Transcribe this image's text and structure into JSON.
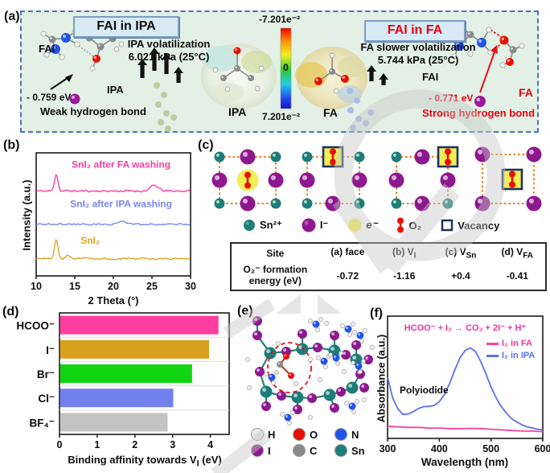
{
  "panel_a": {
    "label": "(a)",
    "header_ipa": "FAI in IPA",
    "header_fa": "FAI in FA",
    "fai_left": "FAI",
    "ipa_small": "IPA",
    "weak_energy": "- 0.759 eV",
    "weak_bond": "Weak hydrogen bond",
    "ipa_vol_1": "IPA volatilization",
    "ipa_vol_2": "6.021 kPa (25°C)",
    "esp_ipa": "IPA",
    "esp_fa": "FA",
    "cb_top": "-7.201e⁻²",
    "cb_mid": "0",
    "cb_bottom": "7.201e⁻²",
    "fa_vol_1": "FA slower volatilization",
    "fa_vol_2": "5.744 kPa (25°C)",
    "fai_right": "FAI",
    "strong_energy": "- 0.771 eV",
    "strong_bond": "Strong hydrogen bond",
    "fa_right": "FA"
  },
  "panel_b": {
    "label": "(b)"
  },
  "panel_c": {
    "label": "(c)",
    "legend": [
      {
        "name": "Sn²⁺"
      },
      {
        "name": "I⁻"
      },
      {
        "name": "e⁻"
      },
      {
        "name": "O₂"
      },
      {
        "name": "Vacancy"
      }
    ],
    "table": {
      "site_header": "Site",
      "cols": [
        {
          "pre": "(a) face",
          "sub": ""
        },
        {
          "pre": "(b) V",
          "sub": "I"
        },
        {
          "pre": "(c) V",
          "sub": "Sn"
        },
        {
          "pre": "(d) V",
          "sub": "FA"
        }
      ],
      "row_label": "O₂⁻ formation energy (eV)",
      "values": [
        "-0.72",
        "-1.16",
        "+0.4",
        "-0.41"
      ]
    }
  },
  "panel_d": {
    "label": "(d)"
  },
  "panel_e": {
    "label": "(e)",
    "legend": [
      "H",
      "O",
      "N",
      "I",
      "C",
      "Sn"
    ],
    "legend_colors": [
      "#e9e9e9",
      "#e81000",
      "#2253e8",
      "#8b1a8b",
      "#8a8a8a",
      "#1d7d78"
    ]
  },
  "panel_f": {
    "label": "(f)",
    "reaction": "HCOO⁻ + I₂ → CO₂ + 2I⁻ + H⁺",
    "annotation": "Polyiodide"
  },
  "colors": {
    "pink": "#f8409f",
    "gold": "#d8a01d",
    "green_bar": "#12d512",
    "blue_bar": "#7280ee",
    "grey_bar": "#c2c2c2",
    "blue_line": "#5a6ff0",
    "teal_sn": "#1d7d78",
    "purple_i": "#8e188e",
    "vac_navy": "#1c3461",
    "lat_orange": "#ed7d17",
    "e_yellow": "#f2ee57"
  },
  "chart_data": [
    {
      "panel": "b",
      "type": "line",
      "xlabel": "2 Theta (°)",
      "ylabel": "Intensity (a.u.)",
      "xlim": [
        10,
        30
      ],
      "xticks": [
        10,
        15,
        20,
        25,
        30
      ],
      "series": [
        {
          "name": "SnI₂ after FA washing",
          "color": "#f8409f",
          "baseline": 0.69,
          "noise": 0.013,
          "peaks": [
            {
              "x": 12.6,
              "h": 0.14,
              "w": 0.22
            },
            {
              "x": 25.3,
              "h": 0.045,
              "w": 0.5
            }
          ],
          "label_x": 0.55,
          "label_y": 0.88
        },
        {
          "name": "SnI₂ after IPA washing",
          "color": "#7b87f0",
          "baseline": 0.42,
          "noise": 0.011,
          "peaks": [
            {
              "x": 21.2,
              "h": 0.025,
              "w": 0.4
            }
          ],
          "label_x": 0.55,
          "label_y": 0.56
        },
        {
          "name": "SnI₂",
          "color": "#dca424",
          "baseline": 0.14,
          "noise": 0.011,
          "peaks": [
            {
              "x": 12.6,
              "h": 0.15,
              "w": 0.22
            },
            {
              "x": 14.1,
              "h": 0.035,
              "w": 0.25
            }
          ],
          "label_x": 0.35,
          "label_y": 0.26
        }
      ]
    },
    {
      "panel": "d",
      "type": "bar",
      "orientation": "horizontal",
      "categories": [
        "HCOO⁻",
        "I⁻",
        "Br⁻",
        "Cl⁻",
        "BF₄⁻"
      ],
      "values": [
        4.2,
        3.95,
        3.5,
        3.0,
        2.85
      ],
      "colors": [
        "#fd3da2",
        "#d8a01d",
        "#12d512",
        "#7280ee",
        "#c2c2c2"
      ],
      "xlim": [
        0,
        4.5
      ],
      "xticks": [
        0,
        1,
        2,
        3,
        4
      ],
      "xlabel_pre": "Binding affinity towards V",
      "xlabel_sub": "I",
      "xlabel_post": " (eV)"
    },
    {
      "panel": "f",
      "type": "line",
      "xlabel": "Wavelength (nm)",
      "ylabel": "Absorbance (a.u.)",
      "xlim": [
        300,
        600
      ],
      "xticks": [
        300,
        400,
        500,
        600
      ],
      "ylim": [
        0,
        1
      ],
      "series": [
        {
          "name": "I₂ in FA",
          "color": "#f8409f",
          "x": [
            300,
            320,
            340,
            360,
            380,
            400,
            420,
            440,
            460,
            480,
            500,
            520,
            540,
            560,
            580,
            600
          ],
          "y": [
            0.1,
            0.095,
            0.09,
            0.09,
            0.085,
            0.085,
            0.08,
            0.08,
            0.082,
            0.08,
            0.075,
            0.07,
            0.065,
            0.06,
            0.06,
            0.055
          ]
        },
        {
          "name": "I₂ in IPA",
          "color": "#5a6ff0",
          "x": [
            300,
            310,
            320,
            330,
            340,
            350,
            360,
            370,
            380,
            390,
            400,
            410,
            420,
            430,
            440,
            450,
            460,
            470,
            480,
            490,
            500,
            510,
            520,
            530,
            540,
            550,
            560,
            570,
            580,
            590,
            600
          ],
          "y": [
            0.5,
            0.33,
            0.24,
            0.195,
            0.2,
            0.22,
            0.245,
            0.26,
            0.262,
            0.27,
            0.3,
            0.36,
            0.45,
            0.56,
            0.66,
            0.72,
            0.74,
            0.71,
            0.63,
            0.53,
            0.42,
            0.33,
            0.26,
            0.205,
            0.16,
            0.135,
            0.11,
            0.095,
            0.085,
            0.075,
            0.07
          ]
        }
      ]
    }
  ]
}
